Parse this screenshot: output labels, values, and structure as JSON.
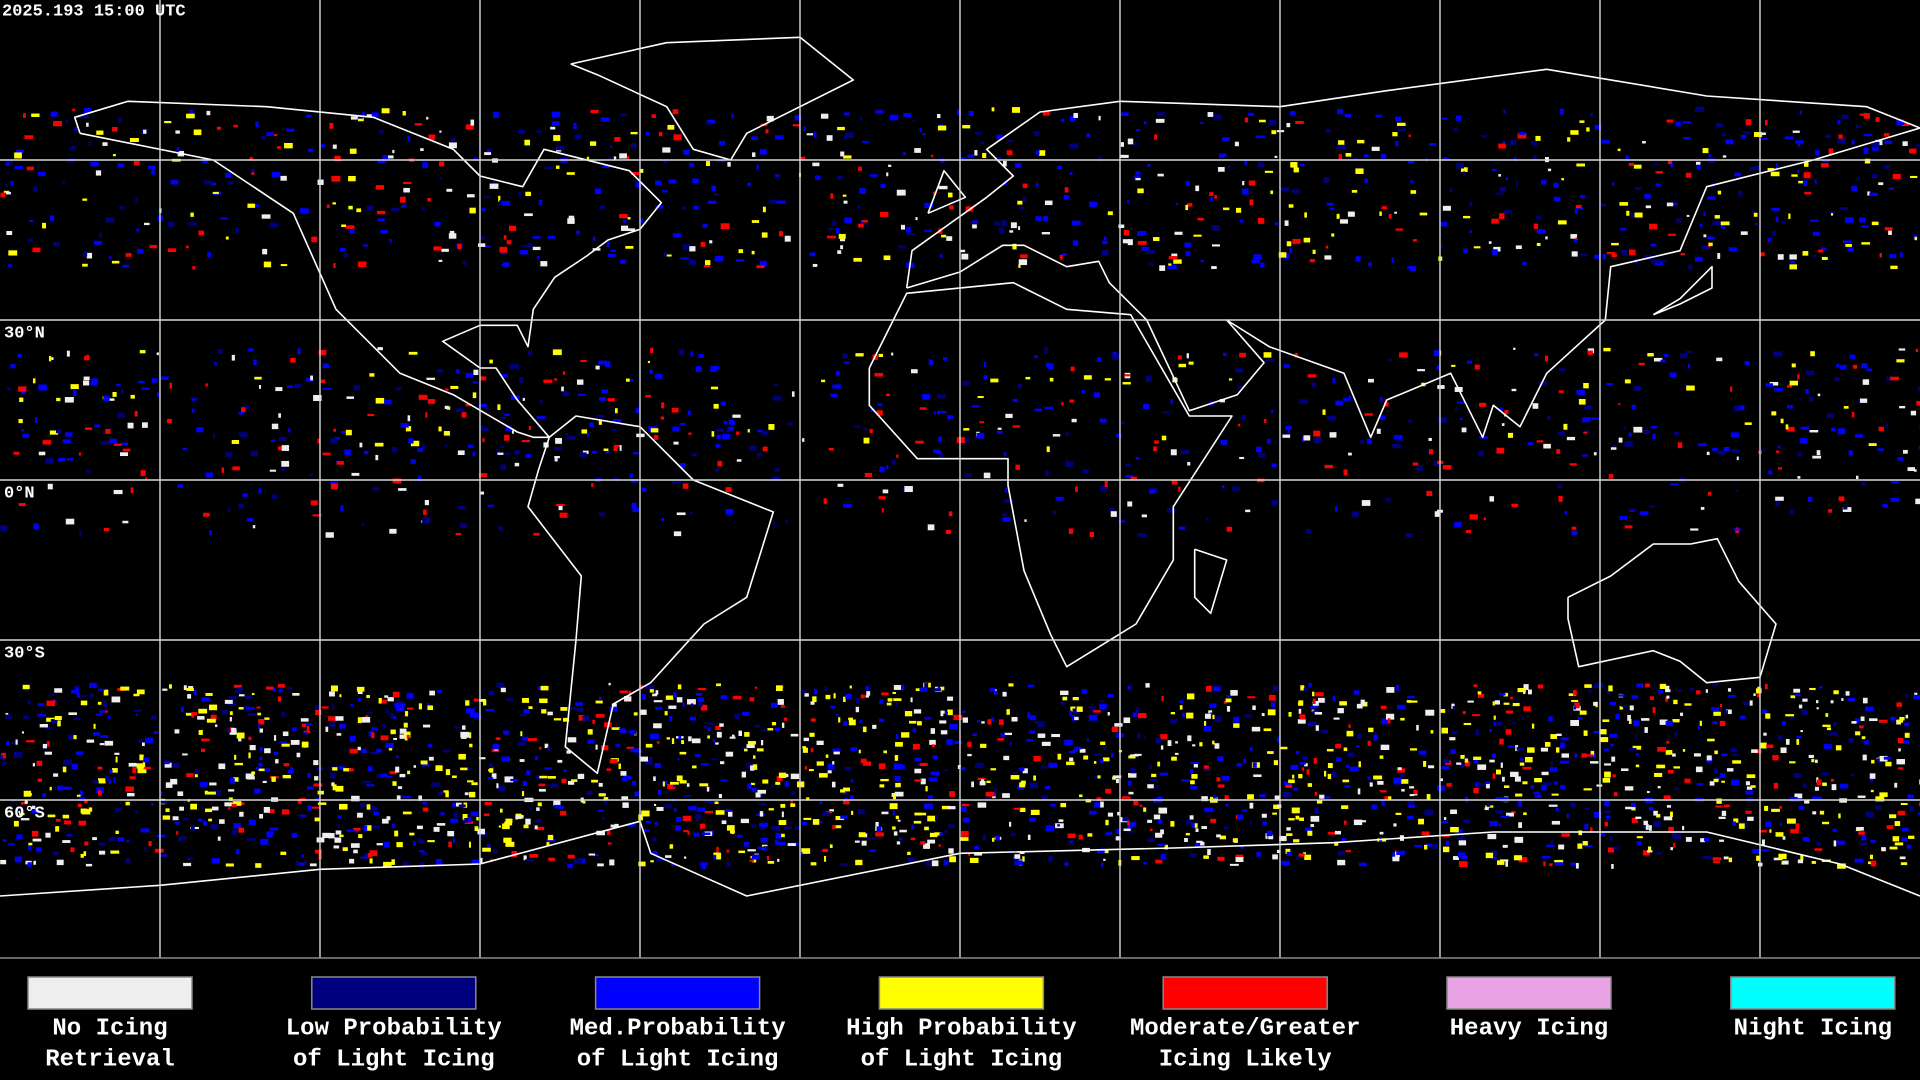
{
  "header": {
    "timestamp": "2025.193 15:00 UTC"
  },
  "map": {
    "lat_labels": [
      "30°N",
      "0°N",
      "30°S",
      "60°S"
    ]
  },
  "legend": {
    "items": [
      {
        "label": [
          "No Icing",
          "Retrieval"
        ],
        "color": "#eeeeee"
      },
      {
        "label": [
          "Low Probability",
          "of Light Icing"
        ],
        "color": "#00007f"
      },
      {
        "label": [
          "Med.Probability",
          "of Light Icing"
        ],
        "color": "#0000ff"
      },
      {
        "label": [
          "High Probability",
          "of Light Icing"
        ],
        "color": "#ffff00"
      },
      {
        "label": [
          "Moderate/Greater",
          "Icing Likely"
        ],
        "color": "#ff0000"
      },
      {
        "label": [
          "Heavy Icing"
        ],
        "color": "#e8a4e4"
      },
      {
        "label": [
          "Night Icing"
        ],
        "color": "#00ffff"
      }
    ]
  }
}
